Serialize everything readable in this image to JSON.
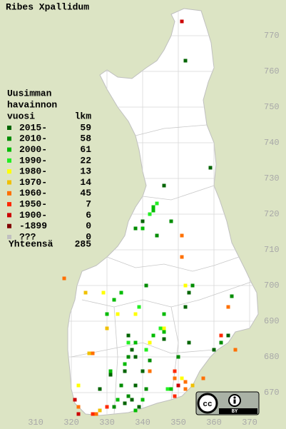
{
  "title": "Ribes Xpallidum",
  "legend": {
    "heading": [
      "Uusimman",
      "havainnon",
      "vuosi"
    ],
    "count_header": "lkm",
    "entries": [
      {
        "label": "2015-",
        "count": 59,
        "color": "#006400",
        "squares": [
          [
            352,
            763
          ],
          [
            359,
            733
          ],
          [
            346,
            728
          ],
          [
            340,
            718
          ],
          [
            353,
            698
          ],
          [
            352,
            694
          ],
          [
            336,
            686
          ],
          [
            337,
            682
          ],
          [
            338,
            680
          ],
          [
            335,
            676
          ],
          [
            340,
            676
          ],
          [
            337,
            668
          ],
          [
            335,
            667
          ],
          [
            339,
            666
          ],
          [
            364,
            686
          ],
          [
            360,
            682
          ],
          [
            353,
            684
          ],
          [
            346,
            685
          ],
          [
            331,
            675
          ],
          [
            328,
            671
          ],
          [
            338,
            672
          ]
        ]
      },
      {
        "label": "2010-",
        "count": 58,
        "color": "#008c00",
        "squares": [
          [
            344,
            714
          ],
          [
            338,
            716
          ],
          [
            348,
            718
          ],
          [
            354,
            700
          ],
          [
            341,
            700
          ],
          [
            346,
            692
          ],
          [
            336,
            680
          ],
          [
            342,
            679
          ],
          [
            334,
            672
          ],
          [
            332,
            666
          ],
          [
            365,
            697
          ],
          [
            362,
            684
          ],
          [
            350,
            680
          ],
          [
            341,
            671
          ],
          [
            336,
            669
          ]
        ]
      },
      {
        "label": "2000-",
        "count": 61,
        "color": "#00bb00",
        "squares": [
          [
            343,
            722
          ],
          [
            343,
            721
          ],
          [
            340,
            716
          ],
          [
            332,
            696
          ],
          [
            334,
            698
          ],
          [
            330,
            692
          ],
          [
            343,
            686
          ],
          [
            338,
            684
          ],
          [
            335,
            678
          ],
          [
            346,
            687
          ],
          [
            333,
            668
          ],
          [
            340,
            668
          ],
          [
            338,
            665
          ],
          [
            348,
            671
          ],
          [
            331,
            676
          ],
          [
            346,
            692
          ]
        ]
      },
      {
        "label": "1990-",
        "count": 22,
        "color": "#22ee22",
        "squares": [
          [
            342,
            720
          ],
          [
            344,
            723
          ],
          [
            339,
            694
          ],
          [
            345,
            688
          ],
          [
            336,
            684
          ],
          [
            341,
            682
          ],
          [
            347,
            671
          ]
        ]
      },
      {
        "label": "1980-",
        "count": 13,
        "color": "#ffff00",
        "squares": [
          [
            329,
            698
          ],
          [
            333,
            692
          ],
          [
            338,
            692
          ],
          [
            346,
            688
          ],
          [
            322,
            672
          ],
          [
            352,
            700
          ],
          [
            351,
            674
          ],
          [
            342,
            684
          ]
        ]
      },
      {
        "label": "1970-",
        "count": 14,
        "color": "#f0c000",
        "squares": [
          [
            324,
            698
          ],
          [
            330,
            688
          ],
          [
            325,
            681
          ],
          [
            354,
            672
          ],
          [
            328,
            665
          ]
        ]
      },
      {
        "label": "1960-",
        "count": 45,
        "color": "#ff7000",
        "squares": [
          [
            318,
            702
          ],
          [
            351,
            708
          ],
          [
            351,
            714
          ],
          [
            364,
            694
          ],
          [
            366,
            682
          ],
          [
            349,
            674
          ],
          [
            350,
            672
          ],
          [
            352,
            673
          ],
          [
            326,
            681
          ],
          [
            327,
            664
          ],
          [
            322,
            666
          ],
          [
            357,
            674
          ],
          [
            352,
            671
          ],
          [
            342,
            676
          ]
        ]
      },
      {
        "label": "1950-",
        "count": 7,
        "color": "#ff2800",
        "squares": [
          [
            349,
            676
          ],
          [
            362,
            686
          ],
          [
            330,
            666
          ],
          [
            349,
            669
          ],
          [
            326,
            664
          ]
        ]
      },
      {
        "label": "1900-",
        "count": 6,
        "color": "#cc0000",
        "squares": [
          [
            351,
            774
          ],
          [
            350,
            672
          ],
          [
            321,
            668
          ],
          [
            322,
            664
          ]
        ]
      },
      {
        "label": "-1899",
        "count": 0,
        "color": "#800000",
        "squares": []
      },
      {
        "label": "???",
        "count": 0,
        "color": "#c0c0c0",
        "squares": []
      }
    ],
    "total_label": "Yhteensä",
    "total": 285
  },
  "x_axis": {
    "ticks": [
      310,
      320,
      330,
      340,
      350,
      360,
      370
    ]
  },
  "y_axis": {
    "ticks": [
      670,
      680,
      690,
      700,
      710,
      720,
      730,
      740,
      750,
      760,
      770
    ]
  },
  "license_badge": "BY"
}
